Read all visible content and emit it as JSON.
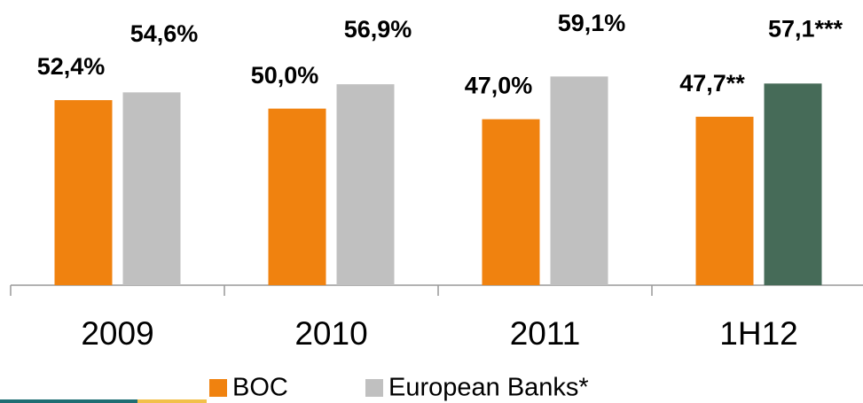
{
  "chart_data": {
    "type": "bar",
    "categories": [
      "2009",
      "2010",
      "2011",
      "1H12"
    ],
    "series": [
      {
        "name": "BOC",
        "color": "#f0820f",
        "values": [
          52.4,
          50.0,
          47.0,
          47.7
        ],
        "value_labels": [
          "52,4%",
          "50,0%",
          "47,0%",
          "47,7**"
        ]
      },
      {
        "name": "European Banks*",
        "color": "#c0c0c0",
        "colors": [
          "#c0c0c0",
          "#c0c0c0",
          "#c0c0c0",
          "#466b58"
        ],
        "values": [
          54.6,
          56.9,
          59.1,
          57.1
        ],
        "value_labels": [
          "54,6%",
          "56,9%",
          "59,1%",
          "57,1***"
        ]
      }
    ],
    "ylim": [
      0,
      80
    ],
    "legend": "bottom"
  }
}
